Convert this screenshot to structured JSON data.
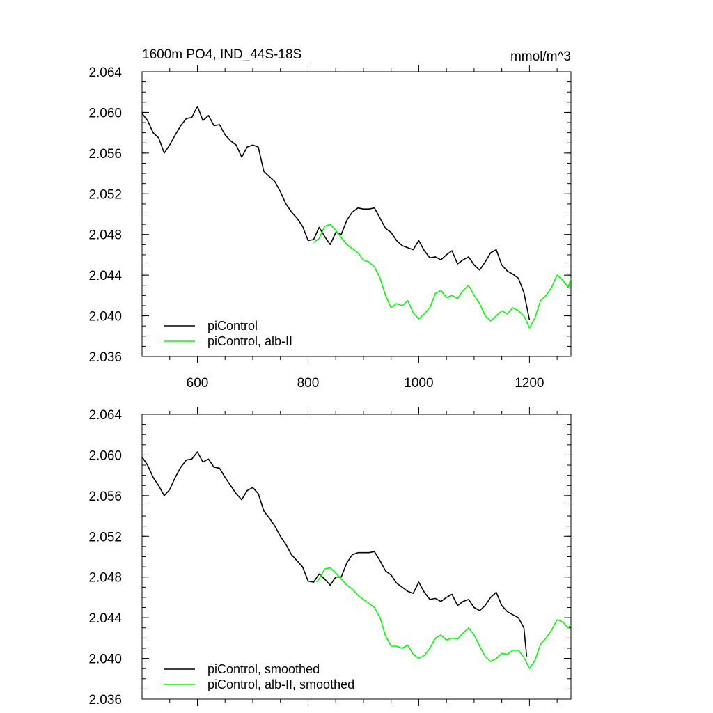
{
  "title_left": "1600m PO4, IND_44S-18S",
  "units": "mmol/m^3",
  "colors": {
    "black": "#000000",
    "green": "#00ff00"
  },
  "chart_data": [
    {
      "type": "line",
      "title": "1600m PO4, IND_44S-18S",
      "units_label": "mmol/m^3",
      "xlim": [
        500,
        1275
      ],
      "ylim": [
        2.036,
        2.064
      ],
      "x_ticks": [
        600,
        800,
        1000,
        1200
      ],
      "x_tick_labels": [
        "600",
        "800",
        "1000",
        "1200"
      ],
      "y_ticks": [
        2.036,
        2.04,
        2.044,
        2.048,
        2.052,
        2.056,
        2.06,
        2.064
      ],
      "y_tick_labels": [
        "2.036",
        "2.040",
        "2.044",
        "2.048",
        "2.052",
        "2.056",
        "2.060",
        "2.064"
      ],
      "legend": {
        "position": "bottom-left",
        "entries": [
          "piControl",
          "piControl, alb-II"
        ]
      },
      "series": [
        {
          "name": "piControl",
          "color": "#000000",
          "x": [
            500,
            510,
            520,
            530,
            540,
            550,
            560,
            570,
            580,
            590,
            600,
            610,
            620,
            630,
            640,
            650,
            660,
            670,
            680,
            690,
            700,
            710,
            720,
            730,
            740,
            750,
            760,
            770,
            780,
            790,
            800,
            810,
            820,
            830,
            840,
            850,
            860,
            870,
            880,
            890,
            900,
            910,
            920,
            930,
            940,
            950,
            960,
            970,
            980,
            990,
            1000,
            1010,
            1020,
            1030,
            1040,
            1050,
            1060,
            1070,
            1080,
            1090,
            1100,
            1110,
            1120,
            1130,
            1140,
            1150,
            1160,
            1170,
            1180,
            1190,
            1200
          ],
          "y": [
            2.0599,
            2.0592,
            2.058,
            2.0575,
            2.056,
            2.0568,
            2.0578,
            2.0587,
            2.0594,
            2.0595,
            2.0606,
            2.0592,
            2.0597,
            2.0587,
            2.0588,
            2.0578,
            2.0572,
            2.0568,
            2.0556,
            2.0566,
            2.0568,
            2.0566,
            2.0542,
            2.0537,
            2.0532,
            2.0522,
            2.051,
            2.0502,
            2.0496,
            2.0488,
            2.0474,
            2.0475,
            2.0487,
            2.0478,
            2.047,
            2.0482,
            2.048,
            2.0494,
            2.0502,
            2.0506,
            2.0505,
            2.0505,
            2.0506,
            2.0496,
            2.0486,
            2.0482,
            2.0474,
            2.0469,
            2.0467,
            2.0465,
            2.0474,
            2.0464,
            2.0457,
            2.0458,
            2.0455,
            2.046,
            2.0464,
            2.0451,
            2.0455,
            2.0458,
            2.045,
            2.0445,
            2.0453,
            2.0462,
            2.0465,
            2.045,
            2.0444,
            2.0441,
            2.0437,
            2.0423,
            2.0396
          ]
        },
        {
          "name": "piControl, alb-II",
          "color": "#00ff00",
          "x": [
            810,
            820,
            830,
            840,
            850,
            860,
            870,
            880,
            890,
            900,
            910,
            920,
            930,
            940,
            950,
            960,
            970,
            980,
            990,
            1000,
            1010,
            1020,
            1030,
            1040,
            1050,
            1060,
            1070,
            1080,
            1090,
            1100,
            1110,
            1120,
            1130,
            1140,
            1150,
            1160,
            1170,
            1180,
            1190,
            1200,
            1210,
            1220,
            1230,
            1240,
            1250,
            1260,
            1270,
            1275
          ],
          "y": [
            2.0472,
            2.0476,
            2.0488,
            2.049,
            2.0484,
            2.0477,
            2.047,
            2.0466,
            2.0462,
            2.0455,
            2.0453,
            2.0448,
            2.0437,
            2.042,
            2.0408,
            2.0412,
            2.041,
            2.0415,
            2.0403,
            2.0397,
            2.0402,
            2.0408,
            2.0422,
            2.0425,
            2.0418,
            2.042,
            2.0417,
            2.0425,
            2.043,
            2.042,
            2.0412,
            2.04,
            2.0395,
            2.04,
            2.0405,
            2.0402,
            2.0408,
            2.0405,
            2.04,
            2.0388,
            2.0398,
            2.0415,
            2.042,
            2.0428,
            2.044,
            2.0435,
            2.0428,
            2.0437
          ]
        }
      ]
    },
    {
      "type": "line",
      "xlim": [
        500,
        1275
      ],
      "ylim": [
        2.036,
        2.064
      ],
      "x_ticks": [
        600,
        800,
        1000,
        1200
      ],
      "y_ticks": [
        2.036,
        2.04,
        2.044,
        2.048,
        2.052,
        2.056,
        2.06,
        2.064
      ],
      "y_tick_labels": [
        "2.036",
        "2.040",
        "2.044",
        "2.048",
        "2.052",
        "2.056",
        "2.060",
        "2.064"
      ],
      "legend": {
        "position": "bottom-left",
        "entries": [
          "piControl, smoothed",
          "piControl, alb-II, smoothed"
        ]
      },
      "series": [
        {
          "name": "piControl, smoothed",
          "color": "#000000",
          "x": [
            500,
            510,
            520,
            530,
            540,
            550,
            560,
            570,
            580,
            590,
            600,
            610,
            620,
            630,
            640,
            650,
            660,
            670,
            680,
            690,
            700,
            710,
            720,
            730,
            740,
            750,
            760,
            770,
            780,
            790,
            800,
            810,
            820,
            830,
            840,
            850,
            860,
            870,
            880,
            890,
            900,
            910,
            920,
            930,
            940,
            950,
            960,
            970,
            980,
            990,
            1000,
            1010,
            1020,
            1030,
            1040,
            1050,
            1060,
            1070,
            1080,
            1090,
            1100,
            1110,
            1120,
            1130,
            1140,
            1150,
            1160,
            1170,
            1180,
            1190,
            1195
          ],
          "y": [
            2.0598,
            2.059,
            2.0578,
            2.057,
            2.056,
            2.0566,
            2.0578,
            2.0588,
            2.0595,
            2.0596,
            2.0603,
            2.0593,
            2.0596,
            2.0588,
            2.0587,
            2.0578,
            2.057,
            2.0562,
            2.0556,
            2.0565,
            2.0568,
            2.0562,
            2.0545,
            2.0538,
            2.053,
            2.052,
            2.0512,
            2.0502,
            2.0496,
            2.049,
            2.0476,
            2.0475,
            2.0483,
            2.0478,
            2.0472,
            2.048,
            2.048,
            2.0494,
            2.0502,
            2.0504,
            2.0504,
            2.0504,
            2.0505,
            2.0496,
            2.0486,
            2.0482,
            2.0474,
            2.047,
            2.0466,
            2.0464,
            2.0475,
            2.0465,
            2.0458,
            2.0459,
            2.0456,
            2.046,
            2.0463,
            2.0452,
            2.0456,
            2.0458,
            2.045,
            2.0447,
            2.0452,
            2.046,
            2.0465,
            2.0452,
            2.0446,
            2.0443,
            2.044,
            2.043,
            2.0402
          ]
        },
        {
          "name": "piControl, alb-II, smoothed",
          "color": "#00ff00",
          "x": [
            815,
            820,
            830,
            840,
            850,
            860,
            870,
            880,
            890,
            900,
            910,
            920,
            930,
            940,
            950,
            960,
            970,
            980,
            990,
            1000,
            1010,
            1020,
            1030,
            1040,
            1050,
            1060,
            1070,
            1080,
            1090,
            1100,
            1110,
            1120,
            1130,
            1140,
            1150,
            1160,
            1170,
            1180,
            1190,
            1200,
            1210,
            1220,
            1230,
            1240,
            1250,
            1260,
            1270,
            1275
          ],
          "y": [
            2.0475,
            2.0478,
            2.0488,
            2.0489,
            2.0484,
            2.0478,
            2.0472,
            2.0468,
            2.0462,
            2.0458,
            2.0454,
            2.045,
            2.044,
            2.0422,
            2.0412,
            2.0412,
            2.041,
            2.0413,
            2.0404,
            2.04,
            2.0403,
            2.041,
            2.042,
            2.0423,
            2.0418,
            2.042,
            2.0419,
            2.0425,
            2.043,
            2.0423,
            2.0412,
            2.0402,
            2.0397,
            2.04,
            2.0405,
            2.0404,
            2.0408,
            2.0408,
            2.0401,
            2.039,
            2.0398,
            2.0414,
            2.042,
            2.0428,
            2.0438,
            2.0436,
            2.043,
            2.0433
          ]
        }
      ]
    }
  ]
}
